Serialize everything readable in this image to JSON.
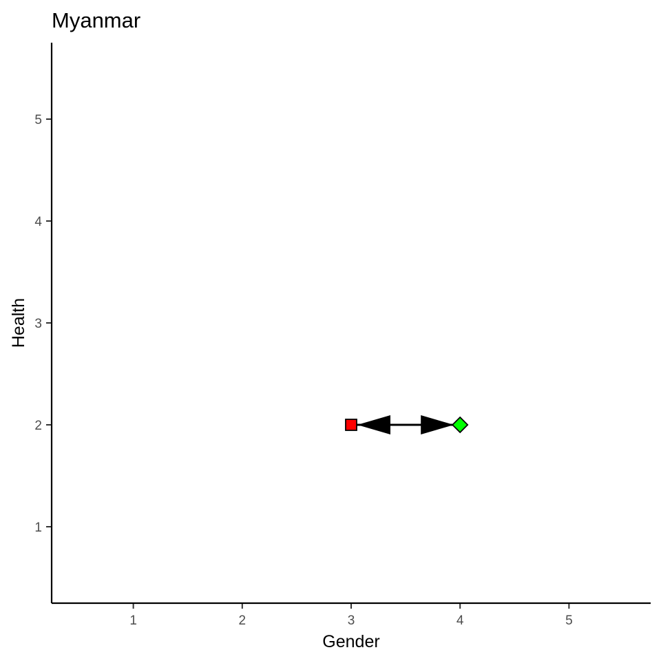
{
  "chart_data": {
    "type": "scatter",
    "title": "Myanmar",
    "xlabel": "Gender",
    "ylabel": "Health",
    "xlim": [
      0.25,
      5.75
    ],
    "ylim": [
      0.25,
      5.75
    ],
    "x_ticks": [
      1,
      2,
      3,
      4,
      5
    ],
    "y_ticks": [
      1,
      2,
      3,
      4,
      5
    ],
    "grid": false,
    "points": [
      {
        "x": 3,
        "y": 2,
        "shape": "square",
        "color": "#ff0000"
      },
      {
        "x": 4,
        "y": 2,
        "shape": "diamond",
        "color": "#00ff00"
      }
    ],
    "segments": [
      {
        "x1": 3,
        "y1": 2,
        "x2": 4,
        "y2": 2,
        "arrows": "both",
        "color": "#000000"
      }
    ]
  }
}
